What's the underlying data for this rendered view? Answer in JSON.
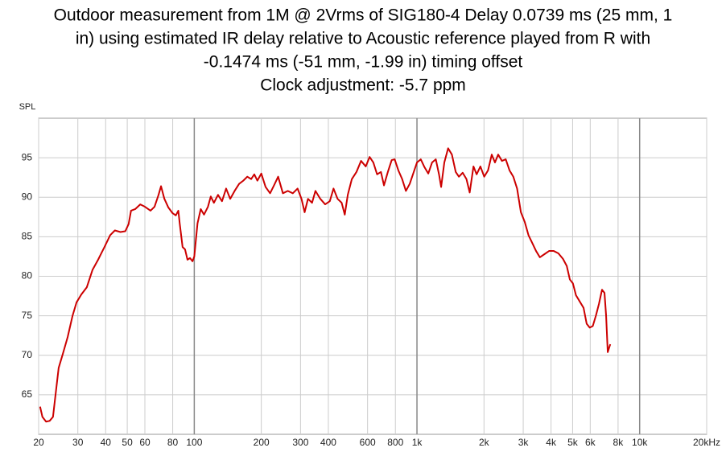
{
  "chart_data": {
    "type": "line",
    "title": [
      "Outdoor measurement from 1M @ 2Vrms of SIG180-4 Delay 0.0739 ms (25 mm, 1",
      "in) using estimated IR delay relative to Acoustic reference played from R with",
      "-0.1474 ms (-51 mm, -1.99 in) timing offset",
      "Clock adjustment: -5.7 ppm"
    ],
    "y_label": "SPL",
    "log_x": true,
    "grid": true,
    "xlim": [
      20,
      20000
    ],
    "ylim": [
      60,
      100
    ],
    "xticks": [
      20,
      30,
      40,
      50,
      60,
      80,
      100,
      200,
      300,
      400,
      600,
      800,
      {
        "value": 1000,
        "label": "1k"
      },
      {
        "value": 2000,
        "label": "2k"
      },
      {
        "value": 3000,
        "label": "3k"
      },
      {
        "value": 4000,
        "label": "4k"
      },
      {
        "value": 5000,
        "label": "5k"
      },
      {
        "value": 6000,
        "label": "6k"
      },
      {
        "value": 8000,
        "label": "8k"
      },
      {
        "value": 10000,
        "label": "10k"
      },
      {
        "value": 20000,
        "label": "20kHz"
      }
    ],
    "yticks": [
      65,
      70,
      75,
      80,
      85,
      90,
      95
    ],
    "x": [
      20.3,
      20.8,
      21.6,
      22.4,
      23.2,
      24.0,
      24.6,
      25.7,
      27.0,
      28.4,
      29.6,
      31.1,
      32.9,
      34.9,
      37.0,
      39.5,
      41.9,
      44.0,
      46.6,
      49.0,
      50.7,
      52.0,
      54.3,
      57.2,
      60.0,
      63.6,
      66.3,
      69.1,
      70.9,
      73.4,
      76.5,
      79.8,
      82.6,
      84.8,
      86.0,
      88.6,
      90.9,
      93.2,
      95.7,
      98.2,
      100,
      103.4,
      106.9,
      110.6,
      115.2,
      118.6,
      122.5,
      127.8,
      133.2,
      139,
      145,
      152.5,
      159,
      166,
      173,
      180,
      186,
      192,
      200,
      209,
      219,
      228,
      238,
      250,
      263,
      277,
      291,
      303,
      313,
      324,
      338,
      350,
      368,
      387,
      406,
      422,
      440,
      459,
      474,
      489,
      510,
      535,
      561,
      589,
      613,
      637,
      662,
      689,
      711,
      740,
      770,
      794,
      825,
      858,
      892,
      928,
      1000,
      1040,
      1081,
      1124,
      1169,
      1215,
      1256,
      1284,
      1327,
      1380,
      1435,
      1493,
      1543,
      1604,
      1668,
      1725,
      1794,
      1853,
      1927,
      2004,
      2085,
      2167,
      2240,
      2315,
      2408,
      2504,
      2604,
      2708,
      2816,
      2929,
      3046,
      3168,
      3295,
      3426,
      3563,
      3738,
      3921,
      4113,
      4315,
      4526,
      4707,
      4858,
      5015,
      5177,
      5384,
      5600,
      5781,
      5968,
      6160,
      6359,
      6565,
      6777,
      6952,
      7070,
      7190,
      7380
    ],
    "series": [
      {
        "color": "#cc0000",
        "values": [
          63.5,
          62.2,
          61.6,
          61.7,
          62.2,
          65.8,
          68.4,
          70.2,
          72.3,
          75,
          76.7,
          77.7,
          78.6,
          80.8,
          82.1,
          83.7,
          85.2,
          85.8,
          85.6,
          85.7,
          86.6,
          88.3,
          88.5,
          89.1,
          88.8,
          88.3,
          88.8,
          90.3,
          91.4,
          89.8,
          88.7,
          88.0,
          87.7,
          88.3,
          86.7,
          83.7,
          83.4,
          82.1,
          82.3,
          81.9,
          82.5,
          86.7,
          88.5,
          87.8,
          88.8,
          90.1,
          89.3,
          90.3,
          89.5,
          91.1,
          89.8,
          90.9,
          91.7,
          92.1,
          92.6,
          92.3,
          92.9,
          92.1,
          93.0,
          91.3,
          90.5,
          91.5,
          92.6,
          90.5,
          90.8,
          90.5,
          91.1,
          89.8,
          88.1,
          89.8,
          89.3,
          90.8,
          89.8,
          89.1,
          89.5,
          91.1,
          89.8,
          89.3,
          87.8,
          90.3,
          92.3,
          93.2,
          94.6,
          93.9,
          95.1,
          94.4,
          92.9,
          93.2,
          91.5,
          93.2,
          94.7,
          94.8,
          93.4,
          92.3,
          90.8,
          91.7,
          94.4,
          94.8,
          93.8,
          93.0,
          94.4,
          94.8,
          92.9,
          91.3,
          94.4,
          96.2,
          95.4,
          93.2,
          92.6,
          93.1,
          92.3,
          90.6,
          93.9,
          92.9,
          93.9,
          92.6,
          93.4,
          95.4,
          94.4,
          95.4,
          94.6,
          94.8,
          93.4,
          92.6,
          91.1,
          88.1,
          86.9,
          85.2,
          84.2,
          83.2,
          82.4,
          82.8,
          83.2,
          83.2,
          82.9,
          82.2,
          81.3,
          79.6,
          79.1,
          77.6,
          76.8,
          76.0,
          74.0,
          73.5,
          73.7,
          75.0,
          76.5,
          78.3,
          77.9,
          75.0,
          70.4,
          71.4
        ]
      }
    ]
  }
}
